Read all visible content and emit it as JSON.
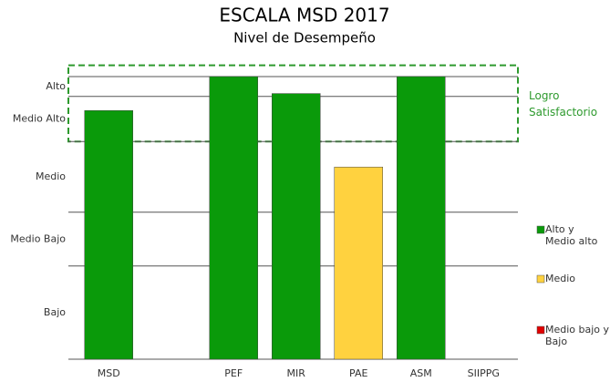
{
  "chart_data": {
    "type": "bar",
    "title": "ESCALA MSD 2017",
    "subtitle": "Nivel de Desempeño",
    "categories": [
      "MSD",
      null,
      "PEF",
      "MIR",
      "PAE",
      "ASM",
      "SIIPPG"
    ],
    "values": [
      88,
      null,
      100,
      94,
      68,
      100,
      null
    ],
    "bar_colors": [
      "#0a9a0a",
      null,
      "#0a9a0a",
      "#0a9a0a",
      "#ffd23f",
      "#0a9a0a",
      null
    ],
    "ylim": [
      0,
      100
    ],
    "yticks": [
      0,
      33,
      52,
      77,
      93,
      100
    ],
    "ylevels": [
      "Bajo",
      "Medio Bajo",
      "Medio",
      "Medio  Alto",
      "Alto"
    ],
    "grid": true,
    "annotation": {
      "lines": [
        "Logro",
        "Satisfactorio"
      ],
      "range": [
        77,
        104
      ],
      "color": "#2e9a2e"
    },
    "legend": [
      {
        "lines": [
          "Alto y",
          "Medio alto"
        ],
        "color": "#0a9a0a"
      },
      {
        "lines": [
          "Medio"
        ],
        "color": "#ffd23f"
      },
      {
        "lines": [
          "Medio bajo y",
          "Bajo"
        ],
        "color": "#e00000"
      }
    ]
  }
}
